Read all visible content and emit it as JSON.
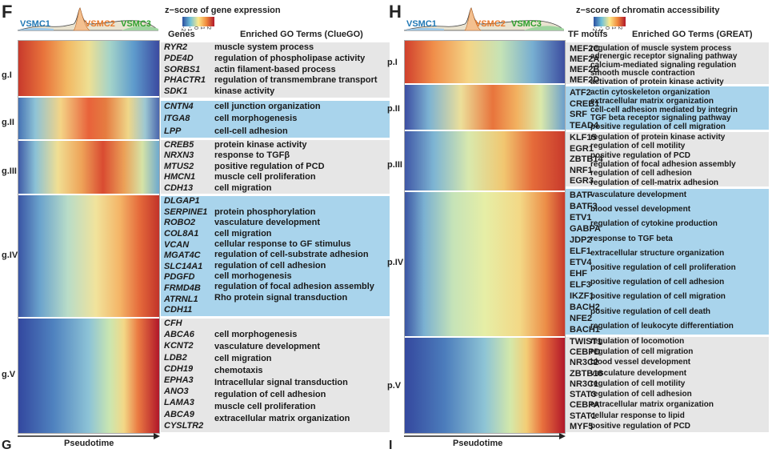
{
  "panel_f": {
    "letter": "F",
    "density_labels": [
      {
        "text": "VSMC1",
        "color": "#1f77b4"
      },
      {
        "text": "VSMC2",
        "color": "#e8792b"
      },
      {
        "text": "VSMC3",
        "color": "#2ca02c"
      }
    ],
    "colorbar_title": "z−score of gene expression",
    "colorbar_ticks": [
      "-2",
      "-1",
      "0",
      "1",
      "2"
    ],
    "col_header_left": "Genes",
    "col_header_right": "Enriched GO Terms (ClueGO)",
    "x_axis_label": "Pseudotime",
    "groups": [
      {
        "label": "g.I",
        "items": [
          "RYR2",
          "PDE4D",
          "SORBS1",
          "PHACTR1",
          "SDK1"
        ],
        "terms": [
          "muscle system process",
          "regulation of phospholipase activity",
          "actin filament-based process",
          "regulation of transmembrane transport",
          "kinase activity"
        ]
      },
      {
        "label": "g.II",
        "items": [
          "CNTN4",
          "ITGA8",
          "LPP"
        ],
        "terms": [
          "cell junction organization",
          "cell morphogenesis",
          "cell-cell adhesion"
        ]
      },
      {
        "label": "g.III",
        "items": [
          "CREB5",
          "NRXN3",
          "MTUS2",
          "HMCN1",
          "CDH13"
        ],
        "terms": [
          "protein kinase activity",
          "response to TGFβ",
          "positive regulation of PCD",
          "muscle cell proliferation",
          "cell migration"
        ]
      },
      {
        "label": "g.IV",
        "items": [
          "DLGAP1",
          "SERPINE1",
          "ROBO2",
          "COL8A1",
          "VCAN",
          "MGAT4C",
          "SLC14A1",
          "PDGFD",
          "FRMD4B",
          "ATRNL1",
          "CDH11"
        ],
        "terms": [
          "protein phosphorylation",
          "vasculature development",
          "cell migration",
          "cellular response to GF stimulus",
          "regulation of cell-substrate adhesion",
          "regulation of cell adhesion",
          "cell morhogenesis",
          "regulation of focal adhesion assembly",
          "Rho protein signal transduction"
        ]
      },
      {
        "label": "g.V",
        "items": [
          "CFH",
          "ABCA6",
          "KCNT2",
          "LDB2",
          "CDH19",
          "EPHA3",
          "ANO3",
          "LAMA3",
          "ABCA9",
          "CYSLTR2"
        ],
        "terms": [
          "cell morphogenesis",
          "vasculature development",
          "cell migration",
          "chemotaxis",
          "Intracellular signal transduction",
          "regulation of cell adhesion",
          "muscle cell proliferation",
          "extraceIlular matrix organization"
        ]
      }
    ]
  },
  "panel_h": {
    "letter": "H",
    "density_labels": [
      {
        "text": "VSMC1",
        "color": "#1f77b4"
      },
      {
        "text": "VSMC2",
        "color": "#e8792b"
      },
      {
        "text": "VSMC3",
        "color": "#2ca02c"
      }
    ],
    "colorbar_title": "z−score of chromatin accessibility",
    "colorbar_ticks": [
      "-2",
      "-1",
      "0",
      "1",
      "2"
    ],
    "col_header_left": "TF motifs",
    "col_header_right": "Enriched GO Terms (GREAT)",
    "x_axis_label": "Pseudotime",
    "groups": [
      {
        "label": "p.I",
        "items": [
          "MEF2C",
          "MEF2A",
          "MEF2B",
          "MEF2D"
        ],
        "terms": [
          "regulation of muscle system process",
          "adrenergic receptor signaling pathway",
          "calcium-mediated signaling regulation",
          "smooth muscle contraction",
          "activation of protein kinase activity"
        ]
      },
      {
        "label": "p.II",
        "items": [
          "ATF2",
          "CREB1",
          "SRF",
          "TEAD4"
        ],
        "terms": [
          "actin cytoskeleton organization",
          "extracellular matrix organization",
          "cell-cell adhesion mediated by integrin",
          "TGF beta receptor signaling pathway",
          "positive regulation of cell migration"
        ]
      },
      {
        "label": "p.III",
        "items": [
          "KLF15",
          "EGR1",
          "ZBTB14",
          "NRF1",
          "EGR3"
        ],
        "terms": [
          "regulation of protein kinase activity",
          "regulation of cell motility",
          "positive regulation of PCD",
          "regulation of focal adhesion assembly",
          "regulation of cell adhesion",
          "regulation of cell-matrix adhesion"
        ]
      },
      {
        "label": "p.IV",
        "items": [
          "BATF",
          "BATF3",
          "ETV1",
          "GABPA",
          "JDP2",
          "ELF1",
          "ETV4",
          "EHF",
          "ELF3",
          "IKZF1",
          "BACH2",
          "NFE2",
          "BACH1"
        ],
        "terms": [
          "vasculature development",
          "blood vessel development",
          "regulation of cytokine production",
          "response to TGF beta",
          "extracellular structure organization",
          "positive regulation of cell proliferation",
          "positive regulation of cell adhesion",
          "positive regulation of cell migration",
          "positive regulation of cell death",
          "regulation of leukocyte differentiation"
        ]
      },
      {
        "label": "p.V",
        "items": [
          "TWIST1",
          "CEBPD",
          "NR3C2",
          "ZBTB18",
          "NR3C1",
          "STAT3",
          "CEBPA",
          "STAT1",
          "MYF5"
        ],
        "terms": [
          "regulation of locomotion",
          "regulation of cell migration",
          "blood vessel development",
          "vasculature development",
          "regulation of cell motility",
          "regulation of cell adhesion",
          "extracellular matrix organization",
          "cellular response to lipid",
          "positive regulation of PCD"
        ]
      }
    ]
  },
  "bottom_letters": [
    "G",
    "I"
  ]
}
